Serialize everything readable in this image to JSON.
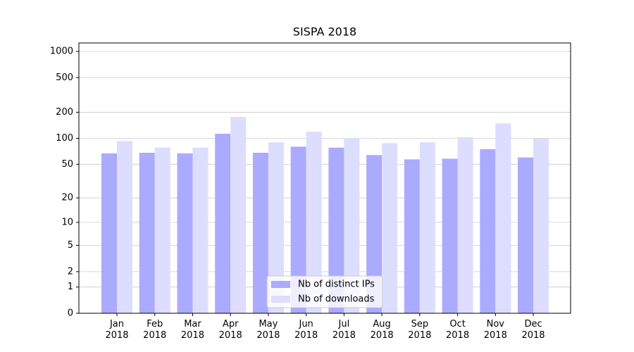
{
  "chart_data": {
    "type": "bar",
    "title": "SISPA 2018",
    "categories": [
      "Jan\n2018",
      "Feb\n2018",
      "Mar\n2018",
      "Apr\n2018",
      "May\n2018",
      "Jun\n2018",
      "Jul\n2018",
      "Aug\n2018",
      "Sep\n2018",
      "Oct\n2018",
      "Nov\n2018",
      "Dec\n2018"
    ],
    "series": [
      {
        "name": "Nb of distinct IPs",
        "color": "#aaaaff",
        "values": [
          67,
          68,
          67,
          113,
          68,
          80,
          78,
          64,
          57,
          58,
          75,
          60
        ]
      },
      {
        "name": "Nb of downloads",
        "color": "#ddddff",
        "values": [
          93,
          78,
          78,
          177,
          90,
          119,
          101,
          88,
          90,
          103,
          149,
          99
        ]
      }
    ],
    "yscale": "symlog",
    "ylim": [
      0,
      1250
    ],
    "yticks": [
      0,
      1,
      2,
      5,
      10,
      20,
      50,
      100,
      200,
      500,
      1000
    ],
    "grid": true,
    "legend": "lower center"
  }
}
